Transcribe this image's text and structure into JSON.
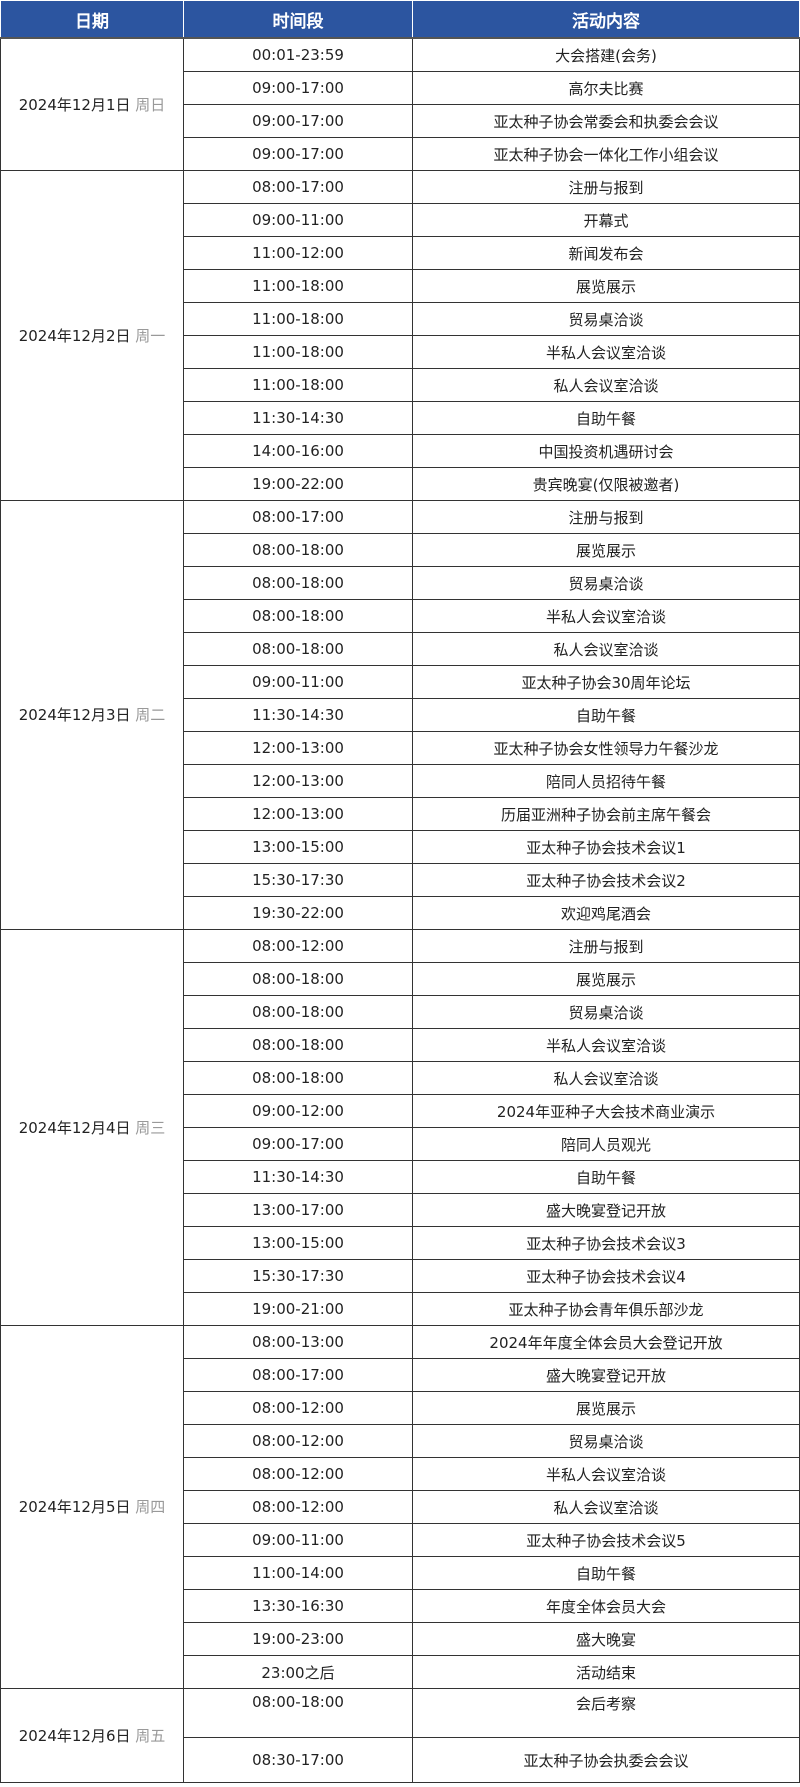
{
  "header": {
    "date": "日期",
    "time": "时间段",
    "activity": "活动内容"
  },
  "groups": [
    {
      "date": "2024年12月1日",
      "weekday": "周日",
      "rows": [
        [
          "00:01-23:59",
          "大会搭建(会务)"
        ],
        [
          "09:00-17:00",
          "高尔夫比赛"
        ],
        [
          "09:00-17:00",
          "亚太种子协会常委会和执委会会议"
        ],
        [
          "09:00-17:00",
          "亚太种子协会一体化工作小组会议"
        ]
      ]
    },
    {
      "date": "2024年12月2日",
      "weekday": "周一",
      "rows": [
        [
          "08:00-17:00",
          "注册与报到"
        ],
        [
          "09:00-11:00",
          "开幕式"
        ],
        [
          "11:00-12:00",
          "新闻发布会"
        ],
        [
          "11:00-18:00",
          "展览展示"
        ],
        [
          "11:00-18:00",
          "贸易桌洽谈"
        ],
        [
          "11:00-18:00",
          "半私人会议室洽谈"
        ],
        [
          "11:00-18:00",
          "私人会议室洽谈"
        ],
        [
          "11:30-14:30",
          "自助午餐"
        ],
        [
          "14:00-16:00",
          "中国投资机遇研讨会"
        ],
        [
          "19:00-22:00",
          "贵宾晚宴(仅限被邀者)"
        ]
      ]
    },
    {
      "date": "2024年12月3日",
      "weekday": "周二",
      "rows": [
        [
          "08:00-17:00",
          "注册与报到"
        ],
        [
          "08:00-18:00",
          "展览展示"
        ],
        [
          "08:00-18:00",
          "贸易桌洽谈"
        ],
        [
          "08:00-18:00",
          "半私人会议室洽谈"
        ],
        [
          "08:00-18:00",
          "私人会议室洽谈"
        ],
        [
          "09:00-11:00",
          "亚太种子协会30周年论坛"
        ],
        [
          "11:30-14:30",
          "自助午餐"
        ],
        [
          "12:00-13:00",
          "亚太种子协会女性领导力午餐沙龙"
        ],
        [
          "12:00-13:00",
          "陪同人员招待午餐"
        ],
        [
          "12:00-13:00",
          "历届亚洲种子协会前主席午餐会"
        ],
        [
          "13:00-15:00",
          "亚太种子协会技术会议1"
        ],
        [
          "15:30-17:30",
          "亚太种子协会技术会议2"
        ],
        [
          "19:30-22:00",
          "欢迎鸡尾酒会"
        ]
      ]
    },
    {
      "date": "2024年12月4日",
      "weekday": "周三",
      "rows": [
        [
          "08:00-12:00",
          "注册与报到"
        ],
        [
          "08:00-18:00",
          "展览展示"
        ],
        [
          "08:00-18:00",
          "贸易桌洽谈"
        ],
        [
          "08:00-18:00",
          "半私人会议室洽谈"
        ],
        [
          "08:00-18:00",
          "私人会议室洽谈"
        ],
        [
          "09:00-12:00",
          "2024年亚种子大会技术商业演示"
        ],
        [
          "09:00-17:00",
          "陪同人员观光"
        ],
        [
          "11:30-14:30",
          "自助午餐"
        ],
        [
          "13:00-17:00",
          "盛大晚宴登记开放"
        ],
        [
          "13:00-15:00",
          "亚太种子协会技术会议3"
        ],
        [
          "15:30-17:30",
          "亚太种子协会技术会议4"
        ],
        [
          "19:00-21:00",
          "亚太种子协会青年俱乐部沙龙"
        ]
      ]
    },
    {
      "date": "2024年12月5日",
      "weekday": "周四",
      "rows": [
        [
          "08:00-13:00",
          "2024年年度全体会员大会登记开放"
        ],
        [
          "08:00-17:00",
          "盛大晚宴登记开放"
        ],
        [
          "08:00-12:00",
          "展览展示"
        ],
        [
          "08:00-12:00",
          "贸易桌洽谈"
        ],
        [
          "08:00-12:00",
          "半私人会议室洽谈"
        ],
        [
          "08:00-12:00",
          "私人会议室洽谈"
        ],
        [
          "09:00-11:00",
          "亚太种子协会技术会议5"
        ],
        [
          "11:00-14:00",
          "自助午餐"
        ],
        [
          "13:30-16:30",
          "年度全体会员大会"
        ],
        [
          "19:00-23:00",
          "盛大晚宴"
        ],
        [
          "23:00之后",
          "活动结束"
        ]
      ]
    },
    {
      "date": "2024年12月6日",
      "weekday": "周五",
      "rows": [
        [
          "08:00-18:00",
          "会后考察"
        ],
        [
          "08:30-17:00",
          "亚太种子协会执委会会议"
        ]
      ]
    }
  ],
  "colors": {
    "header_bg": "#2c55a0",
    "weekday": "#999999"
  }
}
